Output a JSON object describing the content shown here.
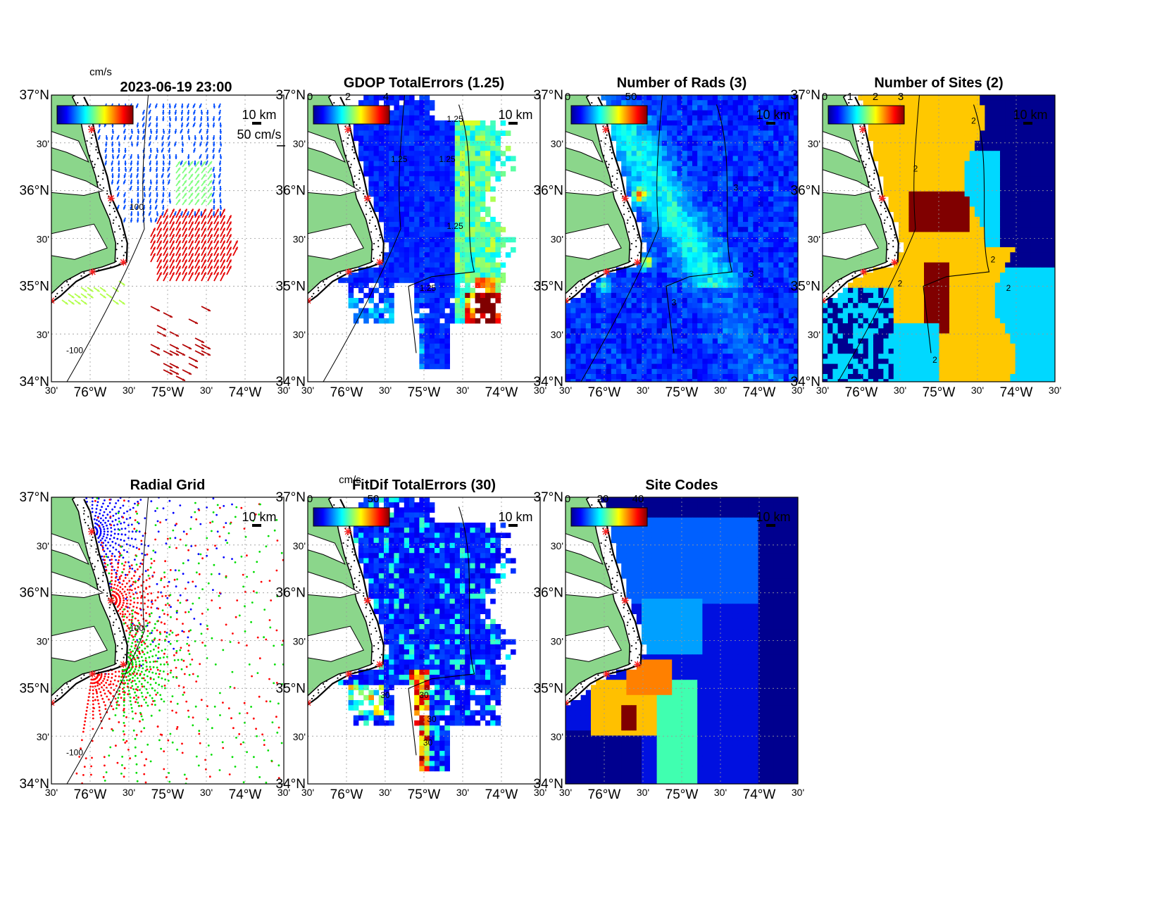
{
  "figure": {
    "timestamp": "2023-06-19 23:00",
    "lat_labels": [
      "37°N",
      "30'",
      "36°N",
      "30'",
      "35°N",
      "30'",
      "34°N"
    ],
    "lon_labels": [
      "30'",
      "76°W",
      "30'",
      "75°W",
      "30'",
      "74°W",
      "30'"
    ],
    "scale_label": "10 km",
    "coast_color": "#8bd68b",
    "panels": [
      {
        "id": "currents",
        "title": "",
        "colorbar": {
          "unit": "cm/s",
          "ticks": []
        },
        "annotations": [
          "50 cm/s"
        ],
        "contour_labels": [
          "-100",
          "100"
        ],
        "sites": [
          [
            -75.98,
            36.64
          ],
          [
            -75.73,
            35.92
          ],
          [
            -75.57,
            35.25
          ],
          [
            -75.97,
            35.15
          ],
          [
            -76.5,
            34.85
          ]
        ]
      },
      {
        "id": "gdop",
        "title": "GDOP TotalErrors (1.25)",
        "colorbar": {
          "unit": "",
          "ticks": [
            "0",
            "2",
            "4"
          ]
        },
        "annotations": [],
        "contour_labels": [
          "1.25",
          "1.25",
          "1.25",
          "1.25",
          "1.25"
        ]
      },
      {
        "id": "rads",
        "title": "Number of Rads (3)",
        "colorbar": {
          "unit": "",
          "ticks": [
            "0",
            "50"
          ]
        },
        "annotations": [],
        "contour_labels": [
          "3",
          "3",
          "3"
        ]
      },
      {
        "id": "sites",
        "title": "Number of Sites (2)",
        "colorbar": {
          "unit": "",
          "ticks": [
            "0",
            "1",
            "2",
            "3"
          ]
        },
        "annotations": [],
        "contour_labels": [
          "2",
          "2",
          "2",
          "2",
          "2",
          "2"
        ]
      },
      {
        "id": "radial",
        "title": "Radial Grid",
        "colorbar": null,
        "annotations": [],
        "contour_labels": [
          "-100",
          "100"
        ],
        "site_colors": [
          "#0000ff",
          "#ff0000",
          "#00dd00",
          "#ff0000"
        ]
      },
      {
        "id": "fitdif",
        "title": "FitDif TotalErrors (30)",
        "colorbar": {
          "unit": "cm/s",
          "ticks": [
            "0",
            "50"
          ]
        },
        "annotations": [],
        "contour_labels": [
          "30",
          "30",
          "30",
          "30"
        ]
      },
      {
        "id": "codes",
        "title": "Site Codes",
        "colorbar": {
          "unit": "",
          "ticks": [
            "0",
            "20",
            "40"
          ]
        },
        "annotations": [],
        "contour_labels": []
      }
    ]
  }
}
